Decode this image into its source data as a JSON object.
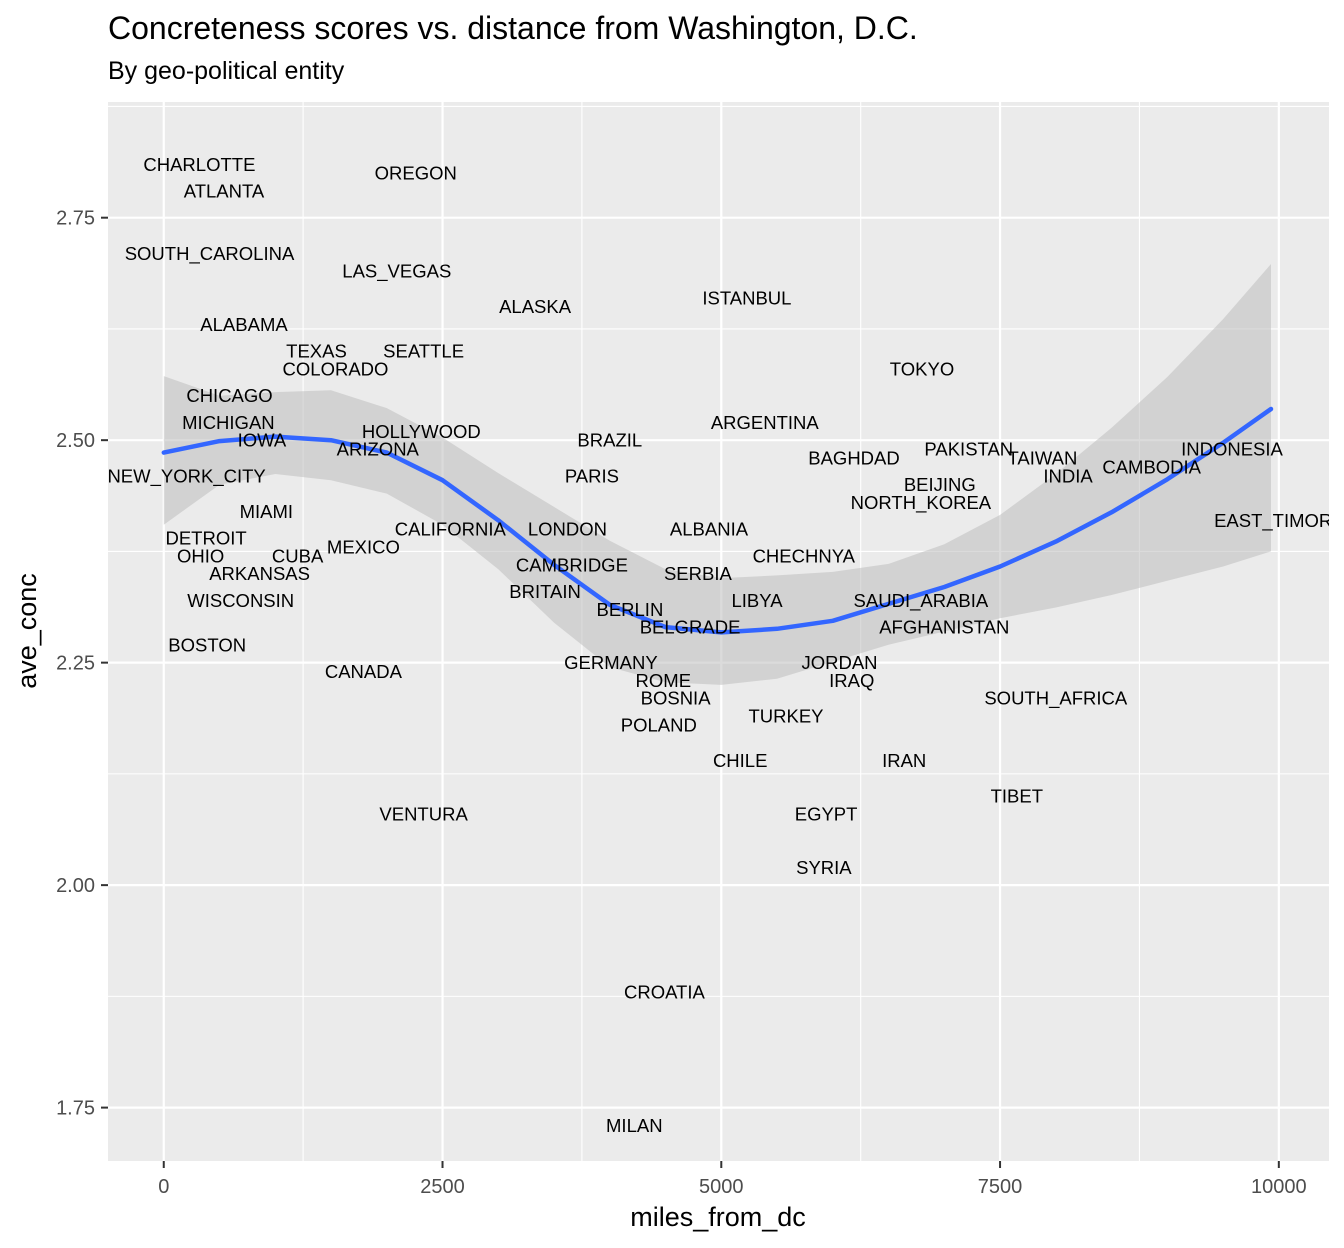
{
  "chart_data": {
    "type": "scatter",
    "title": "Concreteness scores vs. distance from Washington, D.C.",
    "subtitle": "By geo-political entity",
    "xlabel": "miles_from_dc",
    "ylabel": "ave_conc",
    "xlim": [
      -500,
      10450
    ],
    "ylim": [
      1.69,
      2.88
    ],
    "x_ticks": [
      0,
      2500,
      5000,
      7500,
      10000
    ],
    "x_tick_labels": [
      "0",
      "2500",
      "5000",
      "7500",
      "10000"
    ],
    "y_ticks": [
      1.75,
      2.0,
      2.25,
      2.5,
      2.75
    ],
    "y_tick_labels": [
      "1.75",
      "2.00",
      "2.25",
      "2.50",
      "2.75"
    ],
    "panel_background": "#ebebeb",
    "grid": true,
    "smooth_color": "#3366ff",
    "ribbon_color": "#bebebe",
    "points": [
      {
        "label": "CHARLOTTE",
        "x": 320,
        "y": 2.81
      },
      {
        "label": "ATLANTA",
        "x": 540,
        "y": 2.78
      },
      {
        "label": "OREGON",
        "x": 2260,
        "y": 2.8
      },
      {
        "label": "SOUTH_CAROLINA",
        "x": 410,
        "y": 2.71
      },
      {
        "label": "LAS_VEGAS",
        "x": 2090,
        "y": 2.69
      },
      {
        "label": "ALASKA",
        "x": 3330,
        "y": 2.65
      },
      {
        "label": "ISTANBUL",
        "x": 5230,
        "y": 2.66
      },
      {
        "label": "ALABAMA",
        "x": 720,
        "y": 2.63
      },
      {
        "label": "TEXAS",
        "x": 1370,
        "y": 2.6
      },
      {
        "label": "SEATTLE",
        "x": 2330,
        "y": 2.6
      },
      {
        "label": "COLORADO",
        "x": 1540,
        "y": 2.58
      },
      {
        "label": "TOKYO",
        "x": 6800,
        "y": 2.58
      },
      {
        "label": "CHICAGO",
        "x": 590,
        "y": 2.55
      },
      {
        "label": "MICHIGAN",
        "x": 580,
        "y": 2.52
      },
      {
        "label": "IOWA",
        "x": 880,
        "y": 2.5
      },
      {
        "label": "HOLLYWOOD",
        "x": 2310,
        "y": 2.51
      },
      {
        "label": "ARIZONA",
        "x": 1920,
        "y": 2.49
      },
      {
        "label": "BRAZIL",
        "x": 4000,
        "y": 2.5
      },
      {
        "label": "ARGENTINA",
        "x": 5390,
        "y": 2.52
      },
      {
        "label": "PAKISTAN",
        "x": 7220,
        "y": 2.49
      },
      {
        "label": "BAGHDAD",
        "x": 6190,
        "y": 2.48
      },
      {
        "label": "TAIWAN",
        "x": 7880,
        "y": 2.48
      },
      {
        "label": "INDONESIA",
        "x": 9580,
        "y": 2.49
      },
      {
        "label": "CAMBODIA",
        "x": 8860,
        "y": 2.47
      },
      {
        "label": "NEW_YORK_CITY",
        "x": 205,
        "y": 2.46
      },
      {
        "label": "PARIS",
        "x": 3840,
        "y": 2.46
      },
      {
        "label": "INDIA",
        "x": 8110,
        "y": 2.46
      },
      {
        "label": "BEIJING",
        "x": 6960,
        "y": 2.45
      },
      {
        "label": "NORTH_KOREA",
        "x": 6790,
        "y": 2.43
      },
      {
        "label": "MIAMI",
        "x": 920,
        "y": 2.42
      },
      {
        "label": "EAST_TIMOR",
        "x": 9950,
        "y": 2.41
      },
      {
        "label": "CALIFORNIA",
        "x": 2570,
        "y": 2.4
      },
      {
        "label": "LONDON",
        "x": 3620,
        "y": 2.4
      },
      {
        "label": "ALBANIA",
        "x": 4890,
        "y": 2.4
      },
      {
        "label": "DETROIT",
        "x": 380,
        "y": 2.39
      },
      {
        "label": "MEXICO",
        "x": 1790,
        "y": 2.38
      },
      {
        "label": "OHIO",
        "x": 330,
        "y": 2.37
      },
      {
        "label": "CUBA",
        "x": 1200,
        "y": 2.37
      },
      {
        "label": "CHECHNYA",
        "x": 5740,
        "y": 2.37
      },
      {
        "label": "ARKANSAS",
        "x": 860,
        "y": 2.35
      },
      {
        "label": "CAMBRIDGE",
        "x": 3660,
        "y": 2.36
      },
      {
        "label": "SERBIA",
        "x": 4790,
        "y": 2.35
      },
      {
        "label": "WISCONSIN",
        "x": 690,
        "y": 2.32
      },
      {
        "label": "BRITAIN",
        "x": 3420,
        "y": 2.33
      },
      {
        "label": "LIBYA",
        "x": 5320,
        "y": 2.32
      },
      {
        "label": "SAUDI_ARABIA",
        "x": 6790,
        "y": 2.32
      },
      {
        "label": "BERLIN",
        "x": 4180,
        "y": 2.31
      },
      {
        "label": "BELGRADE",
        "x": 4720,
        "y": 2.29
      },
      {
        "label": "AFGHANISTAN",
        "x": 7000,
        "y": 2.29
      },
      {
        "label": "BOSTON",
        "x": 390,
        "y": 2.27
      },
      {
        "label": "GERMANY",
        "x": 4010,
        "y": 2.25
      },
      {
        "label": "JORDAN",
        "x": 6060,
        "y": 2.25
      },
      {
        "label": "CANADA",
        "x": 1790,
        "y": 2.24
      },
      {
        "label": "ROME",
        "x": 4480,
        "y": 2.23
      },
      {
        "label": "IRAQ",
        "x": 6170,
        "y": 2.23
      },
      {
        "label": "BOSNIA",
        "x": 4590,
        "y": 2.21
      },
      {
        "label": "SOUTH_AFRICA",
        "x": 8000,
        "y": 2.21
      },
      {
        "label": "TURKEY",
        "x": 5580,
        "y": 2.19
      },
      {
        "label": "POLAND",
        "x": 4440,
        "y": 2.18
      },
      {
        "label": "CHILE",
        "x": 5170,
        "y": 2.14
      },
      {
        "label": "IRAN",
        "x": 6640,
        "y": 2.14
      },
      {
        "label": "TIBET",
        "x": 7650,
        "y": 2.1
      },
      {
        "label": "VENTURA",
        "x": 2330,
        "y": 2.08
      },
      {
        "label": "EGYPT",
        "x": 5940,
        "y": 2.08
      },
      {
        "label": "SYRIA",
        "x": 5920,
        "y": 2.02
      },
      {
        "label": "CROATIA",
        "x": 4490,
        "y": 1.88
      },
      {
        "label": "MILAN",
        "x": 4220,
        "y": 1.73
      }
    ],
    "smooth": {
      "x": [
        0,
        500,
        1000,
        1500,
        2000,
        2500,
        3000,
        3500,
        4000,
        4500,
        5000,
        5500,
        6000,
        6500,
        7000,
        7500,
        8000,
        8500,
        9000,
        9500,
        9930
      ],
      "y": [
        2.486,
        2.499,
        2.504,
        2.5,
        2.486,
        2.455,
        2.41,
        2.36,
        2.315,
        2.29,
        2.284,
        2.288,
        2.297,
        2.316,
        2.335,
        2.358,
        2.386,
        2.419,
        2.456,
        2.497,
        2.535
      ],
      "lower": [
        2.405,
        2.45,
        2.462,
        2.455,
        2.44,
        2.405,
        2.355,
        2.295,
        2.245,
        2.228,
        2.225,
        2.232,
        2.251,
        2.27,
        2.285,
        2.3,
        2.312,
        2.326,
        2.342,
        2.358,
        2.375
      ],
      "upper": [
        2.572,
        2.55,
        2.554,
        2.556,
        2.536,
        2.503,
        2.463,
        2.425,
        2.387,
        2.355,
        2.345,
        2.348,
        2.352,
        2.361,
        2.383,
        2.416,
        2.462,
        2.514,
        2.571,
        2.636,
        2.698
      ]
    }
  }
}
